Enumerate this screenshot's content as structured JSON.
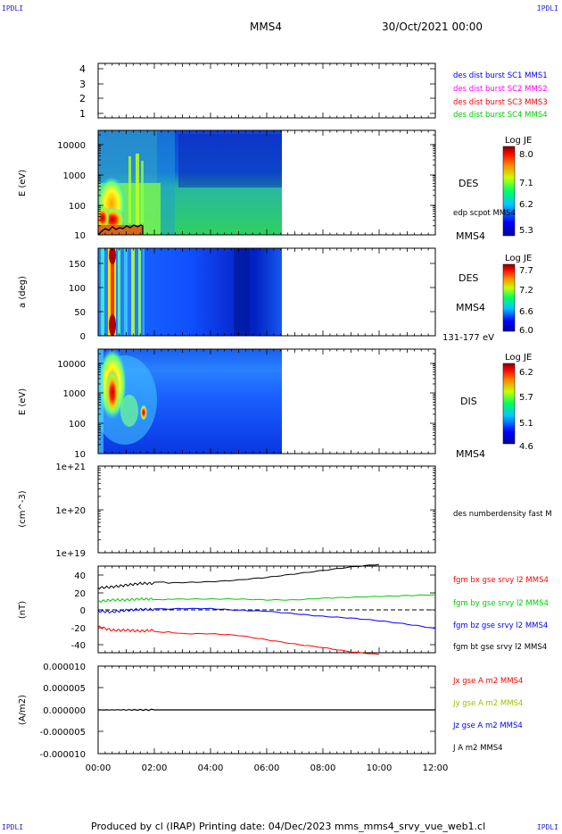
{
  "corners": {
    "tl": "IPDLI",
    "tr": "IPDLI",
    "bl": "IPDLI",
    "br": "IPDLI"
  },
  "header": {
    "spacecraft": "MMS4",
    "datetime": "30/Oct/2021 00:00"
  },
  "footer": "Produced by cl (IRAP)   Printing date: 04/Dec/2023   mms_mms4_srvy_vue_web1.cl",
  "x_axis": {
    "ticks": [
      "00:00",
      "02:00",
      "04:00",
      "06:00",
      "08:00",
      "10:00",
      "12:00"
    ]
  },
  "colors": {
    "mms1": "#0000ff",
    "mms2": "#ff00ff",
    "mms3": "#ff0000",
    "mms4": "#00cc00",
    "bx": "#ff0000",
    "by": "#00cc00",
    "bz": "#0000ff",
    "bt": "#000000"
  },
  "panel1": {
    "yticks": [
      "1",
      "2",
      "3",
      "4"
    ],
    "labels": [
      "des dist burst SC1 MMS1",
      "des dist burst SC2 MMS2",
      "des dist burst SC3 MMS3",
      "des dist burst SC4 MMS4"
    ]
  },
  "panel2": {
    "ylabel": "E (eV)",
    "yticks": [
      "10",
      "100",
      "1000",
      "10000"
    ],
    "instrument": "DES",
    "spacecraft": "MMS4",
    "overlay": "edp scpot MMS4",
    "cbar": {
      "title": "Log JE",
      "ticks": [
        "8.0",
        "7.1",
        "6.2",
        "5.3"
      ]
    }
  },
  "panel3": {
    "ylabel": "a (deg)",
    "yticks": [
      "0",
      "50",
      "100",
      "150"
    ],
    "instrument": "DES",
    "spacecraft": "MMS4",
    "energy": "131-177 eV",
    "cbar": {
      "title": "Log JE",
      "ticks": [
        "7.7",
        "7.2",
        "6.6",
        "6.0"
      ]
    }
  },
  "panel4": {
    "ylabel": "E (eV)",
    "yticks": [
      "10",
      "100",
      "1000",
      "10000"
    ],
    "instrument": "DIS",
    "spacecraft": "MMS4",
    "cbar": {
      "title": "Log JE",
      "ticks": [
        "6.2",
        "5.7",
        "5.1",
        "4.6"
      ]
    }
  },
  "panel5": {
    "ylabel": "(cm^-3)",
    "yticks": [
      "1e+19",
      "1e+20",
      "1e+21"
    ],
    "label": "des numberdensity fast M"
  },
  "panel6": {
    "ylabel": "(nT)",
    "yticks": [
      "-40",
      "-20",
      "0",
      "20",
      "40"
    ],
    "labels": [
      "fgm bx gse srvy l2 MMS4",
      "fgm by gse srvy l2 MMS4",
      "fgm bz gse srvy l2 MMS4",
      "fgm bt gse srvy l2 MMS4"
    ]
  },
  "panel7": {
    "ylabel": "(A/m2)",
    "yticks": [
      "-0.000010",
      "-0.000005",
      "0.000000",
      "0.000005",
      "0.000010"
    ],
    "labels": [
      "Jx gse A m2 MMS4",
      "Jy gse A m2 MMS4",
      "Jz gse A m2 MMS4",
      "J A m2 MMS4"
    ]
  },
  "chart_data": [
    {
      "type": "line",
      "title": "",
      "ylabel": "",
      "ylim": [
        0.5,
        4.5
      ],
      "series": []
    },
    {
      "type": "heatmap",
      "ylabel": "E (eV)",
      "yscale": "log",
      "ylim": [
        10,
        30000
      ],
      "xlim_hours": [
        0,
        12
      ],
      "data_end_hours": 6.6,
      "colorbar": {
        "label": "Log JE",
        "range": [
          5.3,
          8.0
        ]
      },
      "overlay": {
        "name": "edp scpot MMS4",
        "x_hours": [
          0.0,
          0.3,
          0.6,
          0.9,
          1.2,
          1.5
        ],
        "y_ev": [
          13,
          16,
          14,
          17,
          18,
          19
        ]
      }
    },
    {
      "type": "heatmap",
      "ylabel": "a (deg)",
      "ylim": [
        0,
        180
      ],
      "xlim_hours": [
        0,
        12
      ],
      "data_end_hours": 6.6,
      "colorbar": {
        "label": "Log JE",
        "range": [
          6.0,
          7.7
        ]
      }
    },
    {
      "type": "heatmap",
      "ylabel": "E (eV)",
      "yscale": "log",
      "ylim": [
        10,
        30000
      ],
      "xlim_hours": [
        0,
        12
      ],
      "data_end_hours": 6.6,
      "colorbar": {
        "label": "Log JE",
        "range": [
          4.6,
          6.2
        ]
      }
    },
    {
      "type": "line",
      "ylabel": "(cm^-3)",
      "yscale": "log",
      "ylim": [
        1e+19,
        1e+21
      ],
      "series": []
    },
    {
      "type": "line",
      "ylabel": "(nT)",
      "ylim": [
        -50,
        50
      ],
      "x_hours": [
        0,
        0.5,
        1,
        1.5,
        2,
        3,
        4,
        5,
        6,
        7,
        8,
        9,
        10,
        11,
        12
      ],
      "series": [
        {
          "name": "fgm bx gse srvy l2 MMS4",
          "color": "#ff0000",
          "values": [
            -20,
            -24,
            -24,
            -25,
            -24,
            -28,
            -28,
            -30,
            -35,
            -40,
            -44,
            -49,
            -52,
            null,
            null
          ]
        },
        {
          "name": "fgm by gse srvy l2 MMS4",
          "color": "#00cc00",
          "values": [
            9,
            11,
            11,
            12,
            12,
            12,
            12,
            12,
            11,
            11,
            13,
            14,
            15,
            16,
            17
          ]
        },
        {
          "name": "fgm bz gse srvy l2 MMS4",
          "color": "#0000ff",
          "values": [
            -2,
            -3,
            -1,
            0,
            0,
            1,
            1,
            -1,
            -2,
            -5,
            -8,
            -10,
            -13,
            -17,
            -22
          ]
        },
        {
          "name": "fgm bt gse srvy l2 MMS4",
          "color": "#000000",
          "values": [
            25,
            26,
            28,
            30,
            30,
            31,
            32,
            34,
            37,
            41,
            45,
            49,
            52,
            null,
            null
          ]
        }
      ]
    },
    {
      "type": "line",
      "ylabel": "(A/m2)",
      "ylim": [
        -1e-05,
        1e-05
      ],
      "x_hours": [
        0,
        12
      ],
      "series": [
        {
          "name": "J A m2 MMS4",
          "color": "#000000",
          "values": [
            0.0,
            0.0
          ]
        }
      ]
    }
  ]
}
